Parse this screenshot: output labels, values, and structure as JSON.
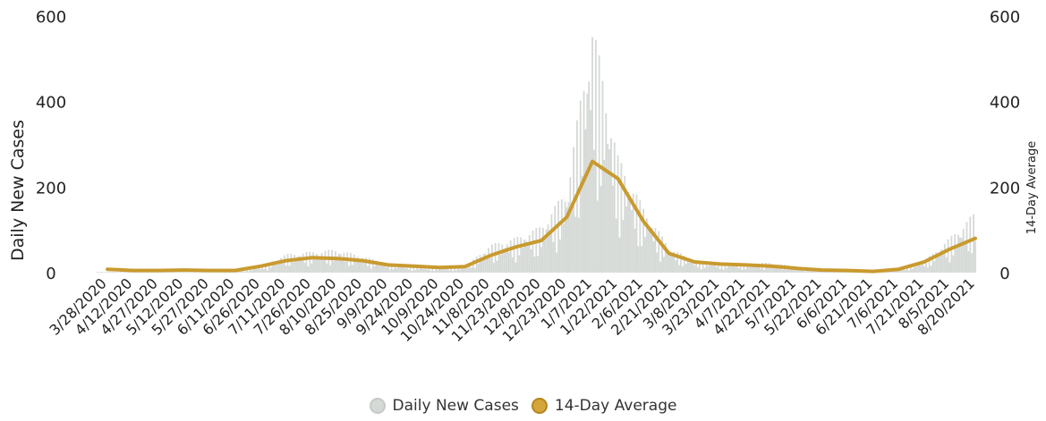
{
  "chart_data": {
    "type": "bar",
    "x_axis_type": "date",
    "x_tick_labels": [
      "3/28/2020",
      "4/12/2020",
      "4/27/2020",
      "5/12/2020",
      "5/27/2020",
      "6/11/2020",
      "6/26/2020",
      "7/11/2020",
      "7/26/2020",
      "8/10/2020",
      "8/25/2020",
      "9/9/2020",
      "9/24/2020",
      "10/9/2020",
      "10/24/2020",
      "11/8/2020",
      "11/23/2020",
      "12/8/2020",
      "12/23/2020",
      "1/7/2021",
      "1/22/2021",
      "2/6/2021",
      "2/21/2021",
      "3/8/2021",
      "3/23/2021",
      "4/7/2021",
      "4/22/2021",
      "5/7/2021",
      "5/22/2021",
      "6/6/2021",
      "6/21/2021",
      "7/6/2021",
      "7/21/2021",
      "8/5/2021",
      "8/20/2021"
    ],
    "ylabel_left": "Daily New Cases",
    "ylabel_right": "14-Day Average",
    "y_ticks": [
      0,
      200,
      400,
      600
    ],
    "ylim": [
      0,
      600
    ],
    "legend_position": "bottom-center",
    "series": [
      {
        "name": "Daily New Cases",
        "kind": "bar",
        "color": "#d5d9d6",
        "points": [
          [
            "3/28/2020",
            2
          ],
          [
            "4/12/2020",
            2
          ],
          [
            "4/27/2020",
            1
          ],
          [
            "5/12/2020",
            1
          ],
          [
            "5/27/2020",
            1
          ],
          [
            "6/11/2020",
            3
          ],
          [
            "6/26/2020",
            12
          ],
          [
            "7/11/2020",
            40
          ],
          [
            "7/26/2020",
            45
          ],
          [
            "8/10/2020",
            50
          ],
          [
            "8/25/2020",
            35
          ],
          [
            "9/9/2020",
            20
          ],
          [
            "9/24/2020",
            12
          ],
          [
            "10/9/2020",
            10
          ],
          [
            "10/24/2020",
            12
          ],
          [
            "11/8/2020",
            60
          ],
          [
            "11/23/2020",
            75
          ],
          [
            "12/8/2020",
            100
          ],
          [
            "12/23/2020",
            180
          ],
          [
            "1/7/2021",
            540
          ],
          [
            "1/22/2021",
            250
          ],
          [
            "2/6/2021",
            140
          ],
          [
            "2/21/2021",
            55
          ],
          [
            "3/8/2021",
            25
          ],
          [
            "3/23/2021",
            20
          ],
          [
            "4/7/2021",
            18
          ],
          [
            "4/22/2021",
            22
          ],
          [
            "5/7/2021",
            12
          ],
          [
            "5/22/2021",
            8
          ],
          [
            "6/6/2021",
            6
          ],
          [
            "6/21/2021",
            5
          ],
          [
            "7/6/2021",
            8
          ],
          [
            "7/21/2021",
            25
          ],
          [
            "8/5/2021",
            75
          ],
          [
            "8/20/2021",
            130
          ]
        ]
      },
      {
        "name": "14-Day Average",
        "kind": "line",
        "color": "#c99a2e",
        "points": [
          [
            "3/28/2020",
            8
          ],
          [
            "4/12/2020",
            5
          ],
          [
            "4/27/2020",
            5
          ],
          [
            "5/12/2020",
            6
          ],
          [
            "5/27/2020",
            5
          ],
          [
            "6/11/2020",
            5
          ],
          [
            "6/26/2020",
            15
          ],
          [
            "7/11/2020",
            28
          ],
          [
            "7/26/2020",
            35
          ],
          [
            "8/10/2020",
            33
          ],
          [
            "8/25/2020",
            28
          ],
          [
            "9/9/2020",
            18
          ],
          [
            "9/24/2020",
            15
          ],
          [
            "10/9/2020",
            12
          ],
          [
            "10/24/2020",
            14
          ],
          [
            "11/8/2020",
            40
          ],
          [
            "11/23/2020",
            60
          ],
          [
            "12/8/2020",
            75
          ],
          [
            "12/23/2020",
            130
          ],
          [
            "1/7/2021",
            260
          ],
          [
            "1/22/2021",
            220
          ],
          [
            "2/6/2021",
            120
          ],
          [
            "2/21/2021",
            45
          ],
          [
            "3/8/2021",
            25
          ],
          [
            "3/23/2021",
            20
          ],
          [
            "4/7/2021",
            18
          ],
          [
            "4/22/2021",
            15
          ],
          [
            "5/7/2021",
            10
          ],
          [
            "5/22/2021",
            6
          ],
          [
            "6/6/2021",
            5
          ],
          [
            "6/21/2021",
            3
          ],
          [
            "7/6/2021",
            8
          ],
          [
            "7/21/2021",
            25
          ],
          [
            "8/5/2021",
            55
          ],
          [
            "8/20/2021",
            80
          ]
        ]
      }
    ]
  },
  "legend": {
    "items": [
      {
        "label": "Daily New Cases",
        "color": "#d5d9d6",
        "border": "#c5cac7"
      },
      {
        "label": "14-Day Average",
        "color": "#d4a53a",
        "border": "#b58620"
      }
    ]
  }
}
